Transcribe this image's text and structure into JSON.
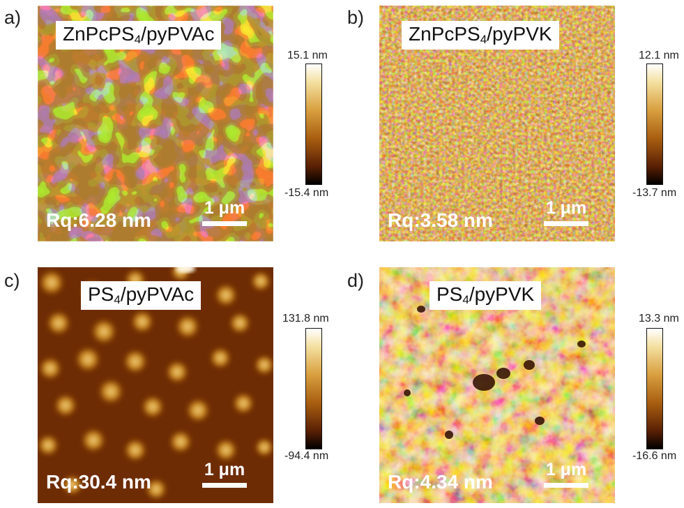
{
  "panels": [
    {
      "letter": "a)",
      "title_main": "ZnPcPS",
      "title_sub": "4",
      "title_rest": "/pyPVAc",
      "rq": "Rq:6.28 nm",
      "scale": "1 μm",
      "cbar_max": "15.1 nm",
      "cbar_min": "-15.4 nm"
    },
    {
      "letter": "b)",
      "title_main": "ZnPcPS",
      "title_sub": "4",
      "title_rest": "/pyPVK",
      "rq": "Rq:3.58 nm",
      "scale": "1 μm",
      "cbar_max": "12.1 nm",
      "cbar_min": "-13.7 nm"
    },
    {
      "letter": "c)",
      "title_main": "PS",
      "title_sub": "4",
      "title_rest": "/pyPVAc",
      "rq": "Rq:30.4 nm",
      "scale": "1 μm",
      "cbar_max": "131.8 nm",
      "cbar_min": "-94.4 nm"
    },
    {
      "letter": "d)",
      "title_main": "PS",
      "title_sub": "4",
      "title_rest": "/pyPVK",
      "rq": "Rq:4.34 nm",
      "scale": "1 μm",
      "cbar_max": "13.3 nm",
      "cbar_min": "-16.6 nm"
    }
  ],
  "colormap": [
    "#000000",
    "#5a2004",
    "#a85e10",
    "#d9a040",
    "#f4e0a0",
    "#ffffff"
  ]
}
